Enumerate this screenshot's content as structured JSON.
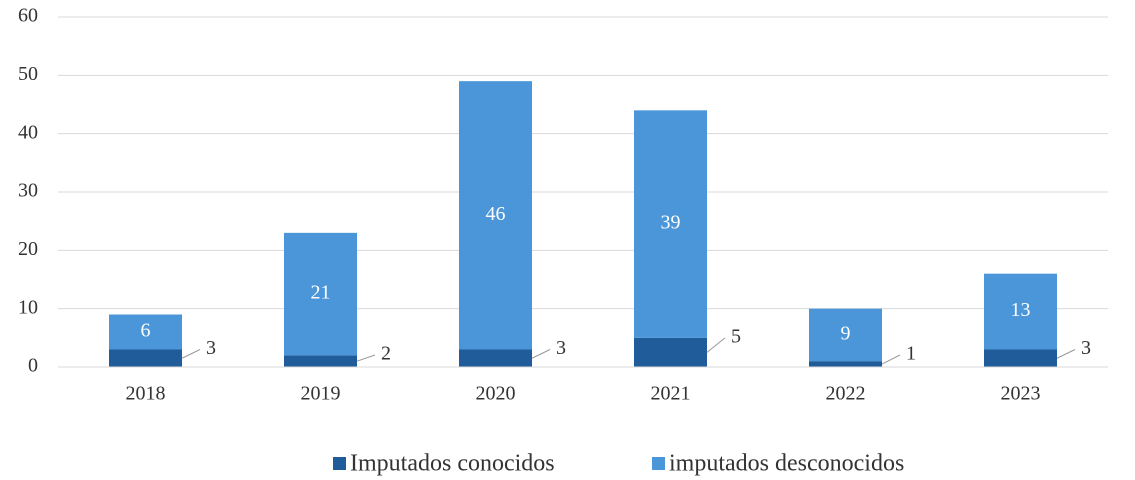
{
  "chart_data": {
    "type": "stacked_bar",
    "categories": [
      "2018",
      "2019",
      "2020",
      "2021",
      "2022",
      "2023"
    ],
    "series": [
      {
        "name": "Imputados conocidos",
        "color": "#1f5c99",
        "values": [
          3,
          2,
          3,
          5,
          1,
          3
        ]
      },
      {
        "name": "imputados desconocidos",
        "color": "#4a96d9",
        "values": [
          6,
          21,
          46,
          39,
          9,
          13
        ]
      }
    ],
    "ylim": [
      0,
      60
    ],
    "yticks": [
      0,
      10,
      20,
      30,
      40,
      50,
      60
    ],
    "grid": true,
    "legend": "bottom"
  }
}
